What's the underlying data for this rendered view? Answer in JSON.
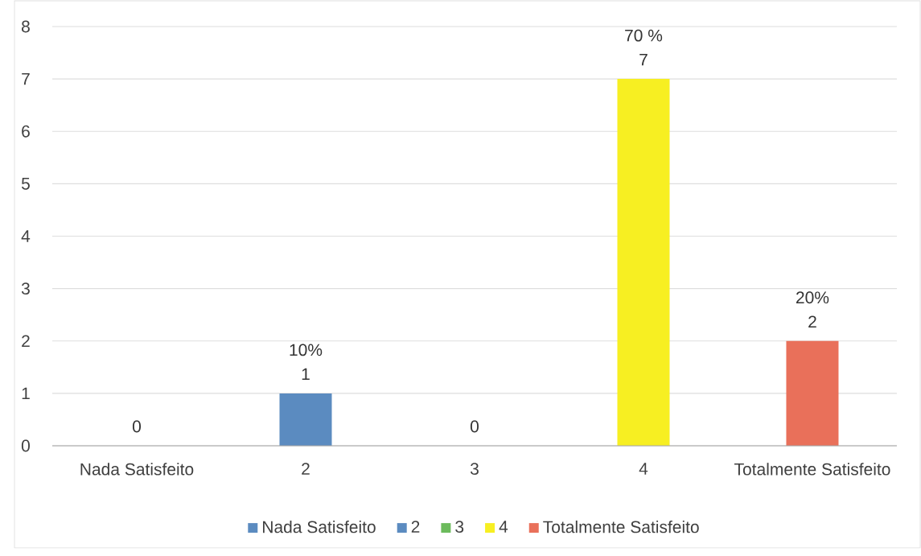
{
  "chart_data": {
    "type": "bar",
    "categories": [
      "Nada Satisfeito",
      "2",
      "3",
      "4",
      "Totalmente Satisfeito"
    ],
    "series": [
      {
        "name": "Nada Satisfeito",
        "color": "#5b8bc0",
        "values": [
          0,
          null,
          null,
          null,
          null
        ]
      },
      {
        "name": "2",
        "color": "#5b8bc0",
        "values": [
          null,
          1,
          null,
          null,
          null
        ]
      },
      {
        "name": "3",
        "color": "#6cbb5c",
        "values": [
          null,
          null,
          0,
          null,
          null
        ]
      },
      {
        "name": "4",
        "color": "#f7ef22",
        "values": [
          null,
          null,
          null,
          7,
          null
        ]
      },
      {
        "name": "Totalmente Satisfeito",
        "color": "#e9705a",
        "values": [
          null,
          null,
          null,
          null,
          2
        ]
      }
    ],
    "ylim": [
      0,
      8
    ],
    "yticks": [
      0,
      1,
      2,
      3,
      4,
      5,
      6,
      7,
      8
    ],
    "grid": "y",
    "legend": "bottom",
    "data_labels": true,
    "annotations": [
      {
        "text": "10%",
        "x": "2",
        "y": 1
      },
      {
        "text": "70 %",
        "x": "4",
        "y": 7
      },
      {
        "text": "20%",
        "x": "Totalmente Satisfeito",
        "y": 2
      }
    ]
  }
}
